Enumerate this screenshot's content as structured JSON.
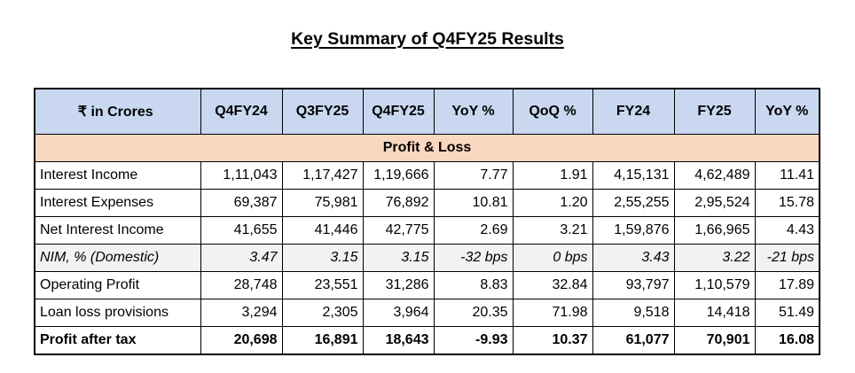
{
  "title": "Key Summary of Q4FY25 Results",
  "colors": {
    "header_bg": "#c9d8f0",
    "section_bg": "#fad8bf",
    "highlight_row_bg": "#f2f2f2"
  },
  "table": {
    "headers": [
      "₹ in Crores",
      "Q4FY24",
      "Q3FY25",
      "Q4FY25",
      "YoY %",
      "QoQ %",
      "FY24",
      "FY25",
      "YoY %"
    ],
    "section": "Profit & Loss",
    "rows": [
      {
        "cells": [
          "Interest Income",
          "1,11,043",
          "1,17,427",
          "1,19,666",
          "7.77",
          "1.91",
          "4,15,131",
          "4,62,489",
          "11.41"
        ],
        "style": "normal"
      },
      {
        "cells": [
          "Interest Expenses",
          "69,387",
          "75,981",
          "76,892",
          "10.81",
          "1.20",
          "2,55,255",
          "2,95,524",
          "15.78"
        ],
        "style": "normal"
      },
      {
        "cells": [
          "Net Interest Income",
          "41,655",
          "41,446",
          "42,775",
          "2.69",
          "3.21",
          "1,59,876",
          "1,66,965",
          "4.43"
        ],
        "style": "normal"
      },
      {
        "cells": [
          "NIM, % (Domestic)",
          "3.47",
          "3.15",
          "3.15",
          "-32 bps",
          "0 bps",
          "3.43",
          "3.22",
          "-21 bps"
        ],
        "style": "italic"
      },
      {
        "cells": [
          "Operating Profit",
          "28,748",
          "23,551",
          "31,286",
          "8.83",
          "32.84",
          "93,797",
          "1,10,579",
          "17.89"
        ],
        "style": "normal"
      },
      {
        "cells": [
          "Loan loss provisions",
          "3,294",
          "2,305",
          "3,964",
          "20.35",
          "71.98",
          "9,518",
          "14,418",
          "51.49"
        ],
        "style": "normal"
      },
      {
        "cells": [
          "Profit after tax",
          "20,698",
          "16,891",
          "18,643",
          "-9.93",
          "10.37",
          "61,077",
          "70,901",
          "16.08"
        ],
        "style": "bold"
      }
    ]
  }
}
